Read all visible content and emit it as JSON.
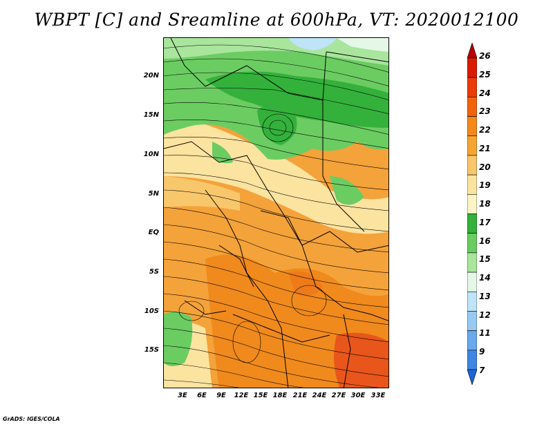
{
  "title": "WBPT [C] and Sreamline at 600hPa, VT: 2020012100",
  "credit": "GrADS: IGES/COLA",
  "lat_labels": [
    "20N",
    "15N",
    "10N",
    "5N",
    "EQ",
    "5S",
    "10S",
    "15S"
  ],
  "lon_labels": [
    "3E",
    "6E",
    "9E",
    "12E",
    "15E",
    "18E",
    "21E",
    "24E",
    "27E",
    "30E",
    "33E"
  ],
  "colorbar": {
    "labels": [
      "26",
      "25",
      "24",
      "23",
      "22",
      "21",
      "20",
      "19",
      "18",
      "17",
      "16",
      "15",
      "14",
      "13",
      "12",
      "11",
      "9",
      "7"
    ],
    "colors": [
      "#b70000",
      "#d91c00",
      "#ec3c05",
      "#f2640c",
      "#f5881b",
      "#f6a533",
      "#f8c76b",
      "#fbe4a0",
      "#fdf5c6",
      "#33b13b",
      "#6bcc62",
      "#a9e59d",
      "#e5f8e8",
      "#bfe4f7",
      "#97c9f2",
      "#6aa9ec",
      "#3f86e3",
      "#1d63d6"
    ]
  }
}
